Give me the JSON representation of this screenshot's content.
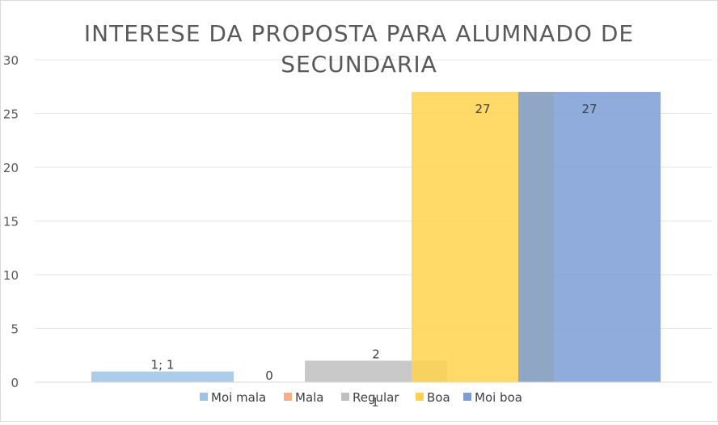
{
  "chart_data": {
    "type": "bar",
    "title_lines": [
      "INTERESE DA PROPOSTA PARA ALUMNADO DE",
      "SECUNDARIA"
    ],
    "xlabel": "",
    "ylabel": "",
    "ylim": [
      0,
      30
    ],
    "yticks": [
      "0",
      "5",
      "10",
      "15",
      "20",
      "25",
      "30"
    ],
    "grid": true,
    "legend_position": "bottom",
    "category_axis_label": "1",
    "series": [
      {
        "name": "Moi mala",
        "value": 1,
        "label": "1; 1",
        "color": "#9dc3e6"
      },
      {
        "name": "Mala",
        "value": 0,
        "label": "0",
        "color": "#f4b183"
      },
      {
        "name": "Regular",
        "value": 2,
        "label": "2",
        "color": "#bfbfbf"
      },
      {
        "name": "Boa",
        "value": 27,
        "label": "27",
        "color": "#ffd34f"
      },
      {
        "name": "Moi boa",
        "value": 27,
        "label": "27",
        "color": "#7b9ed6"
      }
    ]
  }
}
